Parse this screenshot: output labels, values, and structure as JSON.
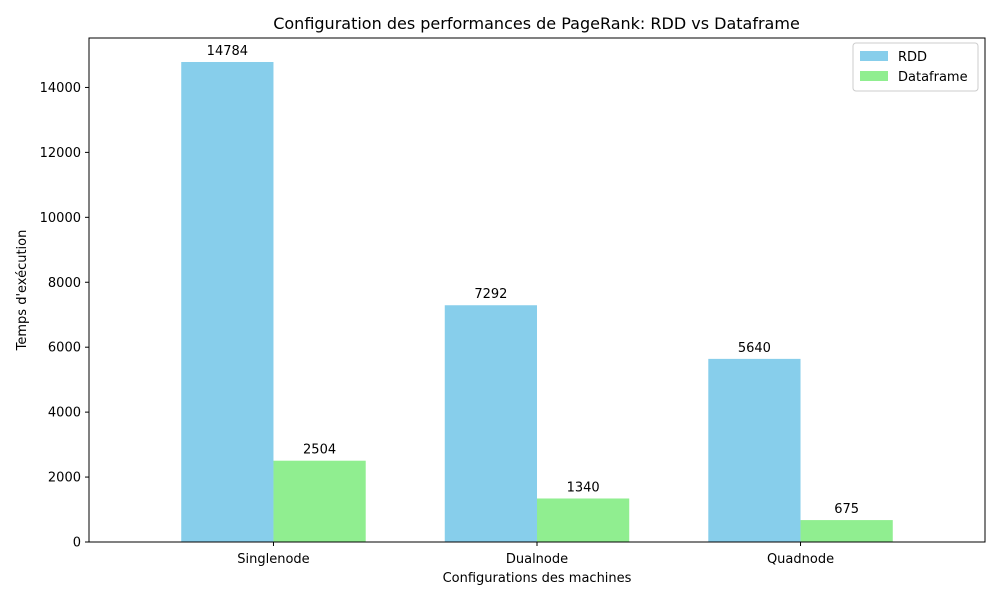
{
  "chart_data": {
    "type": "bar",
    "title": "Configuration des performances de PageRank: RDD vs Dataframe",
    "xlabel": "Configurations des machines",
    "ylabel": "Temps d'exécution",
    "categories": [
      "Singlenode",
      "Dualnode",
      "Quadnode"
    ],
    "series": [
      {
        "name": "RDD",
        "values": [
          14784,
          7292,
          5640
        ],
        "color": "#87ceeb"
      },
      {
        "name": "Dataframe",
        "values": [
          2504,
          1340,
          675
        ],
        "color": "#90ee90"
      }
    ],
    "ylim": [
      0,
      15523
    ],
    "yticks": [
      0,
      2000,
      4000,
      6000,
      8000,
      10000,
      12000,
      14000
    ],
    "legend": "top-right",
    "grid": false
  }
}
